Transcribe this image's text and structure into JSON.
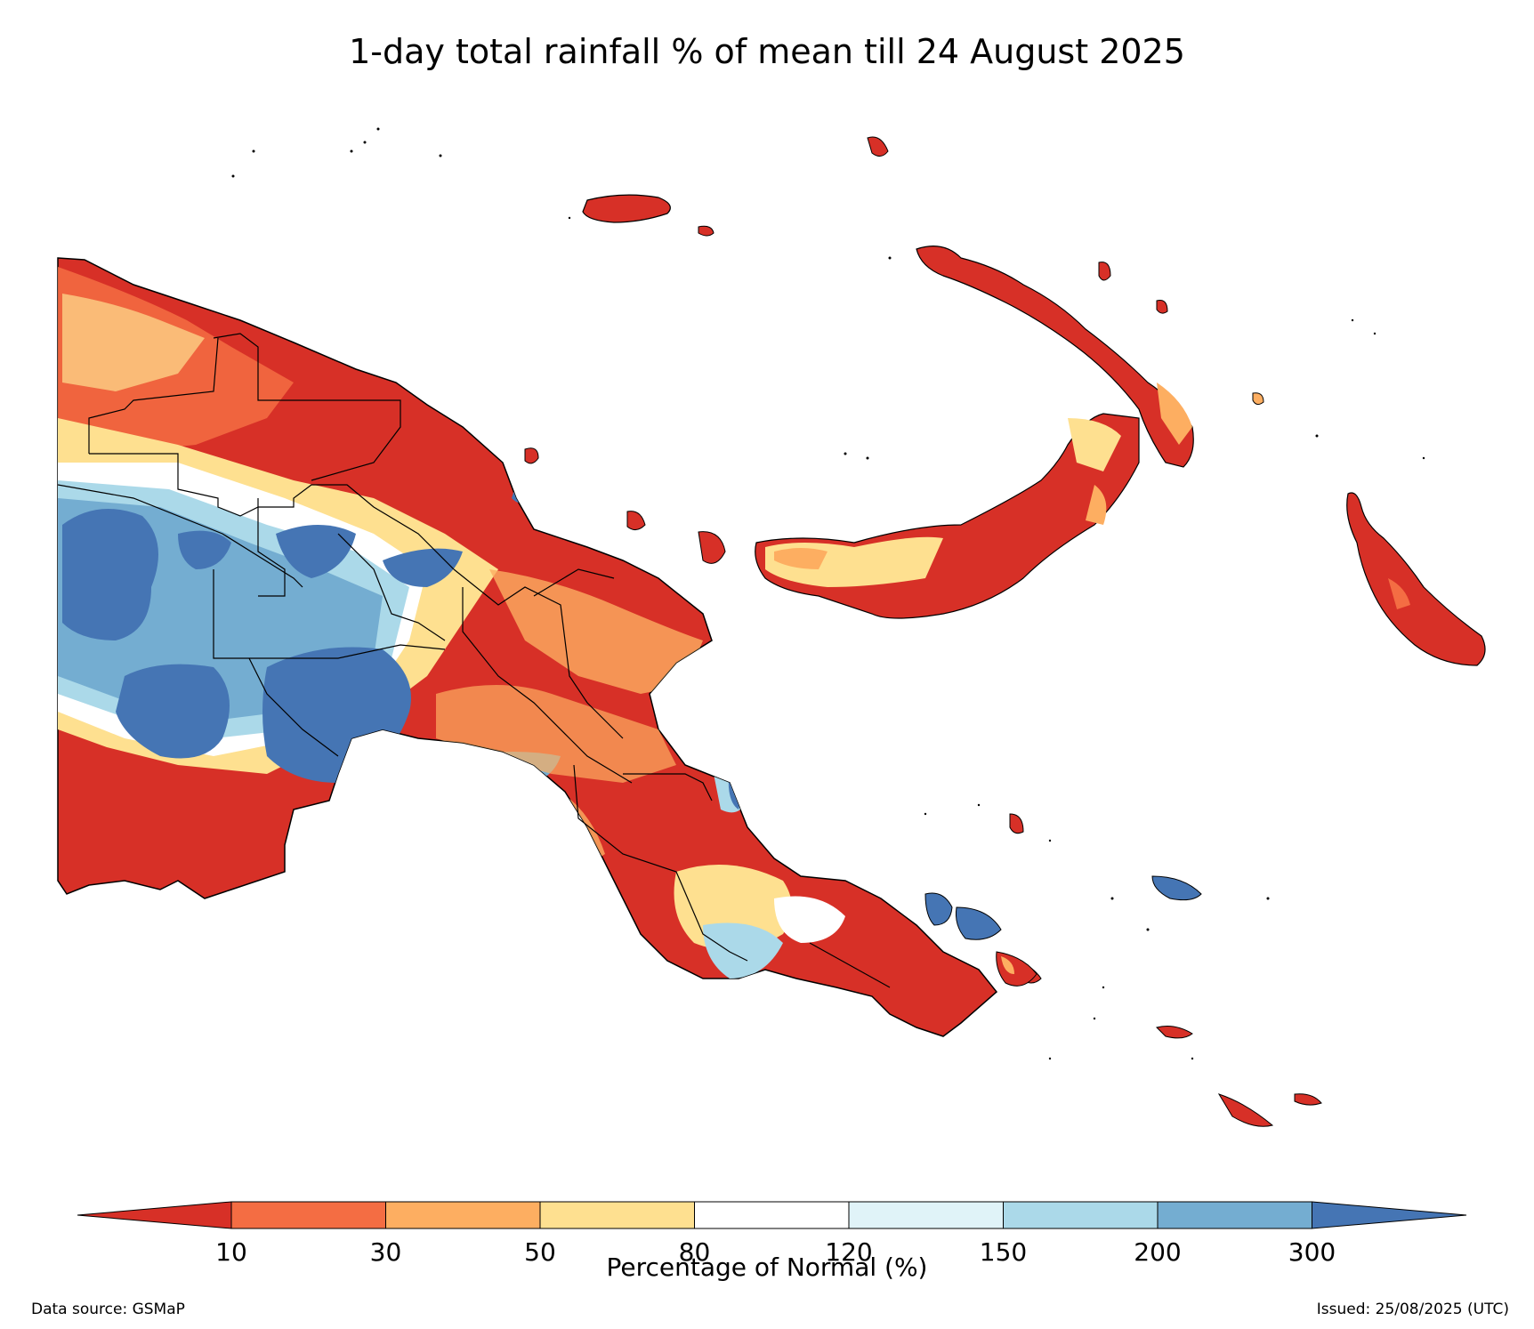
{
  "title": "1-day total rainfall % of mean till 24 August 2025",
  "colorbar": {
    "label": "Percentage of Normal (%)",
    "ticks": [
      "10",
      "30",
      "50",
      "80",
      "120",
      "150",
      "200",
      "300"
    ],
    "colors": {
      "under": "#d73027",
      "c10_30": "#f46d43",
      "c30_50": "#fdae61",
      "c50_80": "#fee090",
      "c80_120": "#ffffff",
      "c120_150": "#e0f3f8",
      "c150_200": "#abd9e9",
      "c200_300": "#74add1",
      "over": "#4575b4"
    }
  },
  "footer": {
    "source": "Data source: GSMaP",
    "issued": "Issued: 25/08/2025 (UTC)"
  }
}
